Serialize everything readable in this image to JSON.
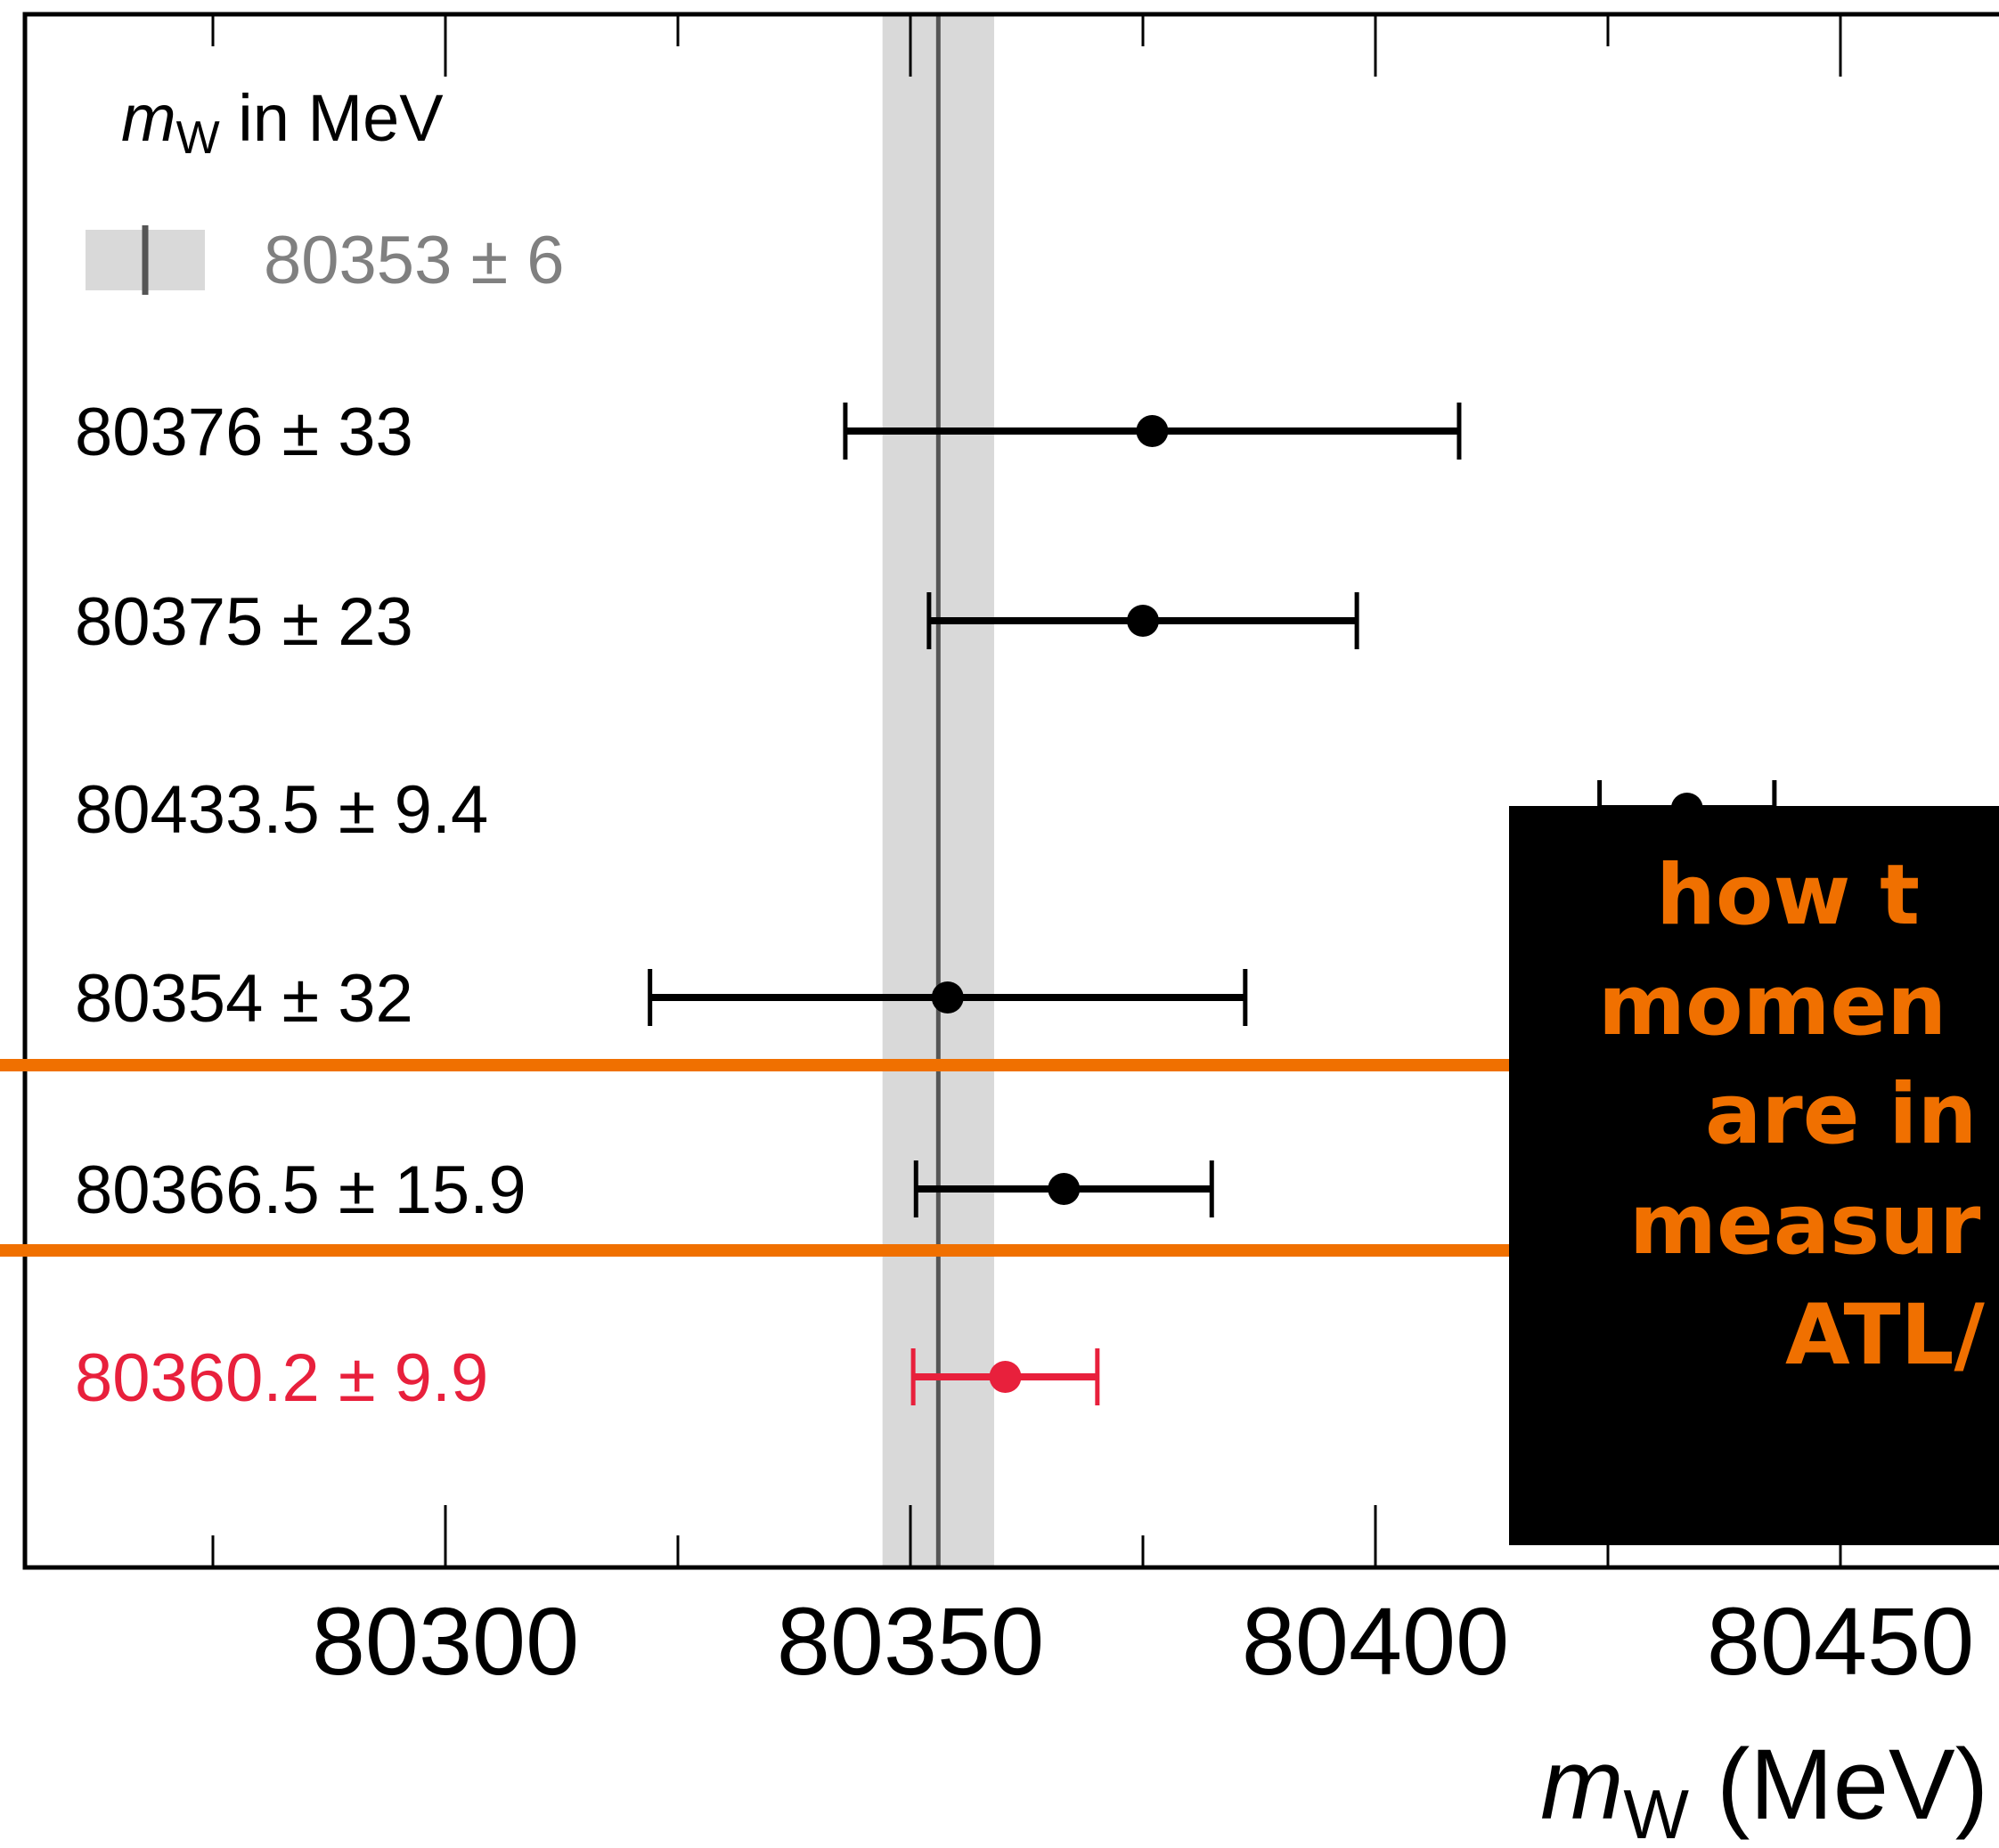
{
  "chart_data": {
    "type": "scatter",
    "legend_title_italic": "m",
    "legend_title_sub": "W",
    "legend_title_rest": " in MeV",
    "reference": {
      "value": 80353,
      "uncertainty": 6,
      "label": "80353 ± 6",
      "band_color": "#d9d9d9",
      "line_color": "#555555",
      "text_color": "#808080"
    },
    "measurements": [
      {
        "value": 80376,
        "uncertainty": 33,
        "label": "80376 ± 33",
        "color": "#000000"
      },
      {
        "value": 80375,
        "uncertainty": 23,
        "label": "80375 ± 23",
        "color": "#000000"
      },
      {
        "value": 80433.5,
        "uncertainty": 9.4,
        "label": "80433.5 ± 9.4",
        "color": "#000000"
      },
      {
        "value": 80354,
        "uncertainty": 32,
        "label": "80354 ± 32",
        "color": "#000000"
      },
      {
        "value": 80366.5,
        "uncertainty": 15.9,
        "label": "80366.5 ± 15.9",
        "color": "#000000"
      },
      {
        "value": 80360.2,
        "uncertainty": 9.9,
        "label": "80360.2 ± 9.9",
        "color": "#e8203c"
      }
    ],
    "x_ticks": [
      "80300",
      "80350",
      "80400",
      "80450"
    ],
    "x_tick_values": [
      80300,
      80350,
      80400,
      80450
    ],
    "x_minor_values": [
      80275,
      80325,
      80375,
      80425
    ],
    "xlabel_italic": "m",
    "xlabel_sub": "W",
    "xlabel_rest": " (MeV)",
    "highlight_color": "#f07000"
  },
  "overlay": {
    "lines": [
      "how t",
      "momen",
      "are in",
      "measur",
      "ATL/"
    ]
  }
}
